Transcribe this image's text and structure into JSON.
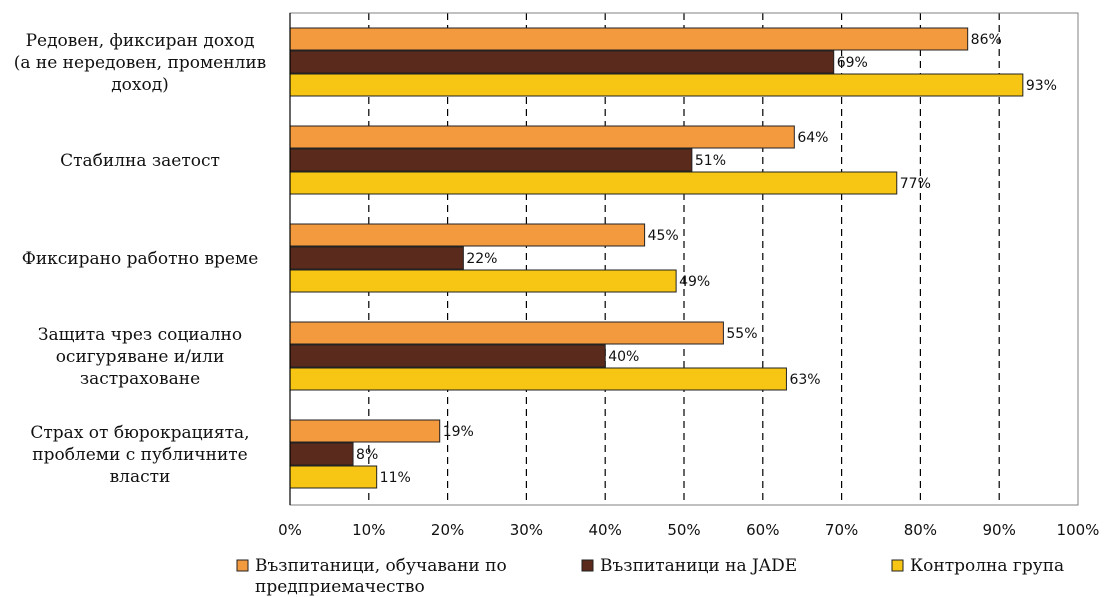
{
  "chart_data": {
    "type": "bar",
    "orientation": "horizontal",
    "categories": [
      [
        "Редовен, фиксиран доход",
        "(а не нередовен, променлив",
        "доход)"
      ],
      [
        "Стабилна заетост"
      ],
      [
        "Фиксирано работно време"
      ],
      [
        "Защита чрез социално",
        "осигуряване и/или",
        "застраховане"
      ],
      [
        "Страх от бюрокрацията,",
        "проблеми с публичните",
        "власти"
      ]
    ],
    "series": [
      {
        "name": [
          "Възпитаници, обучавани по",
          "предприемачество"
        ],
        "color": "#F39A3E",
        "values": [
          86,
          64,
          45,
          55,
          19
        ],
        "labels": [
          "86%",
          "64%",
          "45%",
          "55%",
          "19%"
        ]
      },
      {
        "name": [
          "Възпитаници на JADE"
        ],
        "color": "#5A2A1C",
        "values": [
          69,
          51,
          22,
          40,
          8
        ],
        "labels": [
          "69%",
          "51%",
          "22%",
          "40%",
          "8%"
        ]
      },
      {
        "name": [
          "Контролна група"
        ],
        "color": "#F7C614",
        "values": [
          93,
          77,
          49,
          63,
          11
        ],
        "labels": [
          "93%",
          "77%",
          "49%",
          "63%",
          "11%"
        ]
      }
    ],
    "x_ticks": [
      "0%",
      "10%",
      "20%",
      "30%",
      "40%",
      "50%",
      "60%",
      "70%",
      "80%",
      "90%",
      "100%"
    ],
    "xlim": [
      0,
      100
    ],
    "grid": "vertical dashed",
    "legend_position": "bottom"
  }
}
